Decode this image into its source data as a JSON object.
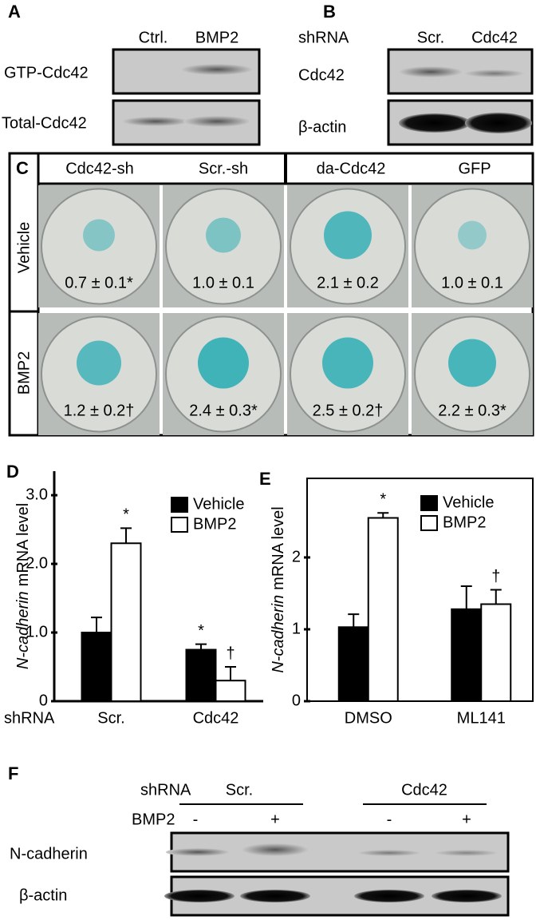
{
  "panel_a": {
    "label": "A",
    "columns": [
      "Ctrl.",
      "BMP2"
    ],
    "rows": [
      "GTP-Cdc42",
      "Total-Cdc42"
    ]
  },
  "panel_b": {
    "label": "B",
    "header": "shRNA",
    "columns": [
      "Scr.",
      "Cdc42"
    ],
    "rows": [
      "Cdc42",
      "β-actin"
    ]
  },
  "panel_c": {
    "label": "C",
    "columns": [
      "Cdc42-sh",
      "Scr.-sh",
      "da-Cdc42",
      "GFP"
    ],
    "rows": [
      {
        "name": "Vehicle",
        "cells": [
          "0.7 ± 0.1*",
          "1.0 ± 0.1",
          "2.1 ± 0.2",
          "1.0 ± 0.1"
        ]
      },
      {
        "name": "BMP2",
        "cells": [
          "1.2 ± 0.2†",
          "2.4 ± 0.3*",
          "2.5 ± 0.2†",
          "2.2 ± 0.3*"
        ]
      }
    ]
  },
  "chart_data": [
    {
      "type": "bar",
      "label": "D",
      "ylabel_italic": "N-cadherin",
      "ylabel": "mRNA  level",
      "x_header": "shRNA",
      "categories": [
        "Scr.",
        "Cdc42"
      ],
      "series": [
        {
          "name": "Vehicle",
          "color": "#000000",
          "values": [
            1.0,
            0.75
          ],
          "errors": [
            0.22,
            0.08
          ],
          "annotations": [
            null,
            "*"
          ]
        },
        {
          "name": "BMP2",
          "color": "#ffffff",
          "values": [
            2.3,
            0.3
          ],
          "errors": [
            0.22,
            0.2
          ],
          "annotations": [
            "*",
            "†"
          ]
        }
      ],
      "ylim": [
        0,
        3.35
      ],
      "yticks": [
        0,
        {
          "value": 1,
          "label": "1.0"
        },
        {
          "value": 2,
          "label": "2.0"
        },
        {
          "value": 3,
          "label": "3.0"
        }
      ],
      "legend": "upper right",
      "frame": false
    },
    {
      "type": "bar",
      "label": "E",
      "ylabel_italic": "N-cadherin",
      "ylabel": "mRNA  level",
      "categories": [
        "DMSO",
        "ML141"
      ],
      "series": [
        {
          "name": "Vehicle",
          "color": "#000000",
          "values": [
            1.03,
            1.28
          ],
          "errors": [
            0.18,
            0.32
          ]
        },
        {
          "name": "BMP2",
          "color": "#ffffff",
          "values": [
            2.55,
            1.35
          ],
          "errors": [
            0.07,
            0.2
          ],
          "annotations": [
            "*",
            "†"
          ]
        }
      ],
      "ylim": [
        0,
        3.1
      ],
      "yticks": [
        0,
        1,
        2
      ],
      "legend": "upper right",
      "frame": true
    }
  ],
  "panel_f": {
    "label": "F",
    "header": "shRNA",
    "groups": [
      "Scr.",
      "Cdc42"
    ],
    "treatment": "BMP2",
    "lanes": [
      "-",
      "+",
      "-",
      "+"
    ],
    "rows": [
      "N-cadherin",
      "β-actin"
    ]
  }
}
